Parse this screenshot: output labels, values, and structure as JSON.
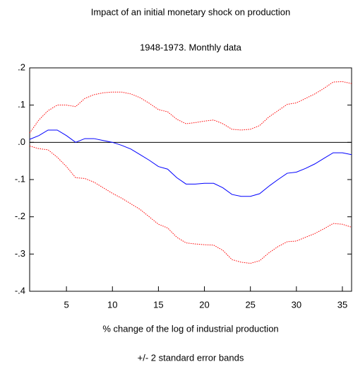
{
  "chart_data": {
    "type": "line",
    "title": "Impact of an initial monetary shock on production",
    "subtitle": "1948-1973. Monthly data",
    "x_label": "% change of the log of industrial production",
    "note": "+/- 2 standard error bands",
    "x": [
      1,
      2,
      3,
      4,
      5,
      6,
      7,
      8,
      9,
      10,
      11,
      12,
      13,
      14,
      15,
      16,
      17,
      18,
      19,
      20,
      21,
      22,
      23,
      24,
      25,
      26,
      27,
      28,
      29,
      30,
      31,
      32,
      33,
      34,
      35,
      36
    ],
    "xlim": [
      1,
      36
    ],
    "xticks": [
      5,
      10,
      15,
      20,
      25,
      30,
      35
    ],
    "ylim": [
      -0.4,
      0.2
    ],
    "yticks": [
      {
        "value": 0.2,
        "label": ".2"
      },
      {
        "value": 0.1,
        "label": ".1"
      },
      {
        "value": 0,
        "label": ".0"
      },
      {
        "value": -0.1,
        "label": "-.1"
      },
      {
        "value": -0.2,
        "label": "-.2"
      },
      {
        "value": -0.3,
        "label": "-.3"
      },
      {
        "value": -0.4,
        "label": "-.4"
      }
    ],
    "zero_line": true,
    "series": [
      {
        "color": "#0000ff",
        "dashed": false,
        "values": [
          0.008,
          0.018,
          0.033,
          0.033,
          0.018,
          0.0,
          0.01,
          0.01,
          0.005,
          0.0,
          -0.008,
          -0.018,
          -0.033,
          -0.048,
          -0.065,
          -0.072,
          -0.095,
          -0.112,
          -0.112,
          -0.11,
          -0.11,
          -0.122,
          -0.14,
          -0.145,
          -0.145,
          -0.138,
          -0.118,
          -0.1,
          -0.083,
          -0.08,
          -0.07,
          -0.058,
          -0.043,
          -0.028,
          -0.028,
          -0.033
        ]
      },
      {
        "color": "#ff0000",
        "dashed": true,
        "values": [
          0.025,
          0.06,
          0.085,
          0.1,
          0.1,
          0.096,
          0.118,
          0.128,
          0.133,
          0.135,
          0.135,
          0.13,
          0.12,
          0.105,
          0.088,
          0.082,
          0.062,
          0.05,
          0.053,
          0.057,
          0.06,
          0.05,
          0.035,
          0.033,
          0.035,
          0.045,
          0.068,
          0.085,
          0.102,
          0.106,
          0.118,
          0.13,
          0.145,
          0.162,
          0.163,
          0.158
        ]
      },
      {
        "color": "#ff0000",
        "dashed": true,
        "values": [
          -0.01,
          -0.017,
          -0.02,
          -0.04,
          -0.065,
          -0.095,
          -0.097,
          -0.107,
          -0.122,
          -0.137,
          -0.15,
          -0.165,
          -0.18,
          -0.2,
          -0.22,
          -0.23,
          -0.255,
          -0.27,
          -0.273,
          -0.275,
          -0.276,
          -0.29,
          -0.315,
          -0.322,
          -0.325,
          -0.318,
          -0.297,
          -0.28,
          -0.267,
          -0.265,
          -0.255,
          -0.245,
          -0.232,
          -0.218,
          -0.22,
          -0.228
        ]
      }
    ]
  }
}
